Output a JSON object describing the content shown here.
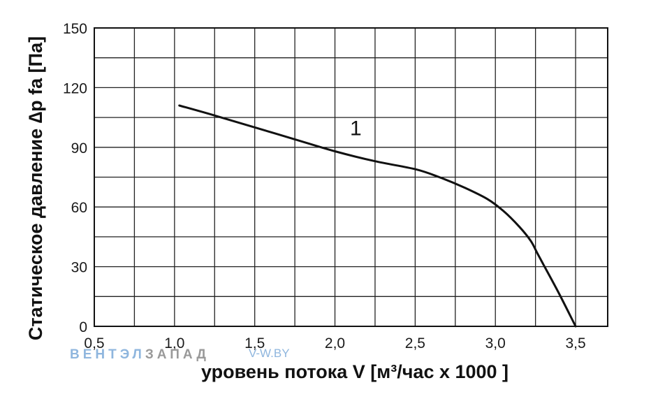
{
  "chart_data": {
    "type": "line",
    "title": "",
    "xlabel": "уровень потока  V [м³/час x 1000 ]",
    "ylabel": "Статическое давление  ∆p fa [Па]",
    "xlim": [
      0.5,
      3.7
    ],
    "ylim": [
      0,
      150
    ],
    "x_ticks": [
      0.5,
      1.0,
      1.5,
      2.0,
      2.5,
      3.0,
      3.5
    ],
    "x_tick_labels": [
      "0,5",
      "1,0",
      "1,5",
      "2,0",
      "2,5",
      "3,0",
      "3,5"
    ],
    "y_ticks": [
      0,
      30,
      60,
      90,
      120,
      150
    ],
    "y_tick_labels": [
      "0",
      "30",
      "60",
      "90",
      "120",
      "150"
    ],
    "grid": true,
    "series": [
      {
        "name": "1",
        "color": "#111111",
        "x": [
          1.03,
          1.25,
          1.5,
          1.75,
          2.0,
          2.25,
          2.5,
          2.65,
          2.8,
          2.95,
          3.05,
          3.15,
          3.22,
          3.26,
          3.3,
          3.4,
          3.5
        ],
        "y": [
          111,
          106,
          100,
          94,
          88,
          83,
          79,
          75,
          70,
          64,
          58,
          50,
          43,
          37,
          31,
          16,
          0
        ]
      }
    ]
  },
  "watermark": {
    "left_part1": "ВЕНТЭЛ",
    "left_part2": "ЗАПАД",
    "right": "V-W.BY",
    "color_blue": "#8fb6de",
    "color_gray": "#9a9a9a"
  }
}
